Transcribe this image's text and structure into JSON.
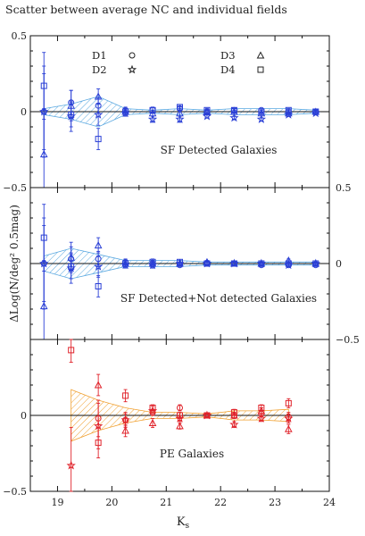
{
  "title": "Scatter between average NC and individual fields",
  "chart_data": [
    {
      "type": "scatter",
      "panel": "top",
      "annotation": "SF Detected Galaxies",
      "xlim": [
        18.5,
        24
      ],
      "ylim": [
        -0.5,
        0.5
      ],
      "yticks": [
        -0.5,
        0,
        0.5
      ],
      "ytick_labels": [
        "−0.5",
        "0",
        "0.5"
      ],
      "ytick_side": "left",
      "color": "#2a3fd6",
      "band_color": "#5aa8e0",
      "legend": {
        "items": [
          {
            "label": "D1",
            "symbol": "circle"
          },
          {
            "label": "D2",
            "symbol": "star"
          },
          {
            "label": "D3",
            "symbol": "triangle"
          },
          {
            "label": "D4",
            "symbol": "square"
          }
        ]
      },
      "band": {
        "x": [
          18.75,
          19.25,
          19.75,
          20.25,
          20.75,
          21.25,
          21.75,
          22.25,
          22.75,
          23.25,
          23.75
        ],
        "upper": [
          0.02,
          0.05,
          0.1,
          0.02,
          0.01,
          0.02,
          0.01,
          0.02,
          0.02,
          0.02,
          0.01
        ],
        "lower": [
          -0.02,
          -0.05,
          -0.1,
          -0.02,
          -0.01,
          -0.02,
          -0.01,
          -0.02,
          -0.02,
          -0.02,
          -0.01
        ]
      },
      "series": [
        {
          "marker": "circle",
          "points": [
            {
              "x": 18.75,
              "y": 0.0,
              "err": 0.3
            },
            {
              "x": 19.25,
              "y": 0.06,
              "err": 0.08
            },
            {
              "x": 19.75,
              "y": 0.04,
              "err": 0.05
            },
            {
              "x": 20.25,
              "y": 0.01,
              "err": 0.02
            },
            {
              "x": 20.75,
              "y": 0.01,
              "err": 0.02
            },
            {
              "x": 21.25,
              "y": 0.02,
              "err": 0.01
            },
            {
              "x": 21.75,
              "y": 0.0,
              "err": 0.01
            },
            {
              "x": 22.25,
              "y": 0.01,
              "err": 0.01
            },
            {
              "x": 22.75,
              "y": 0.01,
              "err": 0.01
            },
            {
              "x": 23.25,
              "y": 0.0,
              "err": 0.01
            },
            {
              "x": 23.75,
              "y": 0.0,
              "err": 0.01
            }
          ]
        },
        {
          "marker": "star",
          "points": [
            {
              "x": 18.75,
              "y": 0.0,
              "err": 0.25
            },
            {
              "x": 19.25,
              "y": -0.03,
              "err": 0.1
            },
            {
              "x": 19.75,
              "y": -0.02,
              "err": 0.07
            },
            {
              "x": 20.25,
              "y": -0.01,
              "err": 0.02
            },
            {
              "x": 20.75,
              "y": -0.05,
              "err": 0.02
            },
            {
              "x": 21.25,
              "y": -0.05,
              "err": 0.02
            },
            {
              "x": 21.75,
              "y": -0.03,
              "err": 0.01
            },
            {
              "x": 22.25,
              "y": -0.04,
              "err": 0.01
            },
            {
              "x": 22.75,
              "y": -0.05,
              "err": 0.01
            },
            {
              "x": 23.25,
              "y": -0.02,
              "err": 0.01
            },
            {
              "x": 23.75,
              "y": -0.01,
              "err": 0.01
            }
          ]
        },
        {
          "marker": "triangle",
          "points": [
            {
              "x": 18.75,
              "y": -0.28,
              "err": 0.3
            },
            {
              "x": 19.25,
              "y": 0.04,
              "err": 0.1
            },
            {
              "x": 19.75,
              "y": 0.1,
              "err": 0.05
            },
            {
              "x": 20.25,
              "y": 0.0,
              "err": 0.02
            },
            {
              "x": 20.75,
              "y": -0.01,
              "err": 0.02
            },
            {
              "x": 21.25,
              "y": -0.01,
              "err": 0.02
            },
            {
              "x": 21.75,
              "y": 0.0,
              "err": 0.01
            },
            {
              "x": 22.25,
              "y": 0.0,
              "err": 0.01
            },
            {
              "x": 22.75,
              "y": -0.01,
              "err": 0.01
            },
            {
              "x": 23.25,
              "y": -0.01,
              "err": 0.01
            },
            {
              "x": 23.75,
              "y": 0.0,
              "err": 0.01
            }
          ]
        },
        {
          "marker": "square",
          "points": [
            {
              "x": 18.75,
              "y": 0.17,
              "err": 0.22
            },
            {
              "x": 19.25,
              "y": -0.02,
              "err": 0.08
            },
            {
              "x": 19.75,
              "y": -0.18,
              "err": 0.07
            },
            {
              "x": 20.25,
              "y": 0.0,
              "err": 0.02
            },
            {
              "x": 20.75,
              "y": 0.01,
              "err": 0.02
            },
            {
              "x": 21.25,
              "y": 0.03,
              "err": 0.01
            },
            {
              "x": 21.75,
              "y": 0.01,
              "err": 0.01
            },
            {
              "x": 22.25,
              "y": 0.01,
              "err": 0.01
            },
            {
              "x": 22.75,
              "y": 0.0,
              "err": 0.01
            },
            {
              "x": 23.25,
              "y": 0.01,
              "err": 0.01
            },
            {
              "x": 23.75,
              "y": 0.0,
              "err": 0.01
            }
          ]
        }
      ]
    },
    {
      "type": "scatter",
      "panel": "middle",
      "annotation": "SF Detected+Not detected Galaxies",
      "xlim": [
        18.5,
        24
      ],
      "ylim": [
        -0.5,
        0.5
      ],
      "yticks": [
        -0.5,
        0,
        0.5
      ],
      "ytick_labels": [
        "−0.5",
        "0",
        "0.5"
      ],
      "ytick_side": "right",
      "color": "#2a3fd6",
      "band_color": "#5aa8e0",
      "band": {
        "x": [
          18.75,
          19.25,
          19.75,
          20.25,
          20.75,
          21.25,
          21.75,
          22.25,
          22.75,
          23.25,
          23.75
        ],
        "upper": [
          0.05,
          0.1,
          0.06,
          0.02,
          0.02,
          0.02,
          0.01,
          0.01,
          0.01,
          0.01,
          0.01
        ],
        "lower": [
          -0.05,
          -0.1,
          -0.06,
          -0.02,
          -0.02,
          -0.02,
          -0.01,
          -0.01,
          -0.01,
          -0.01,
          -0.01
        ]
      },
      "series": [
        {
          "marker": "circle",
          "points": [
            {
              "x": 18.75,
              "y": 0.0,
              "err": 0.3
            },
            {
              "x": 19.25,
              "y": 0.03,
              "err": 0.08
            },
            {
              "x": 19.75,
              "y": 0.03,
              "err": 0.05
            },
            {
              "x": 20.25,
              "y": 0.01,
              "err": 0.02
            },
            {
              "x": 20.75,
              "y": 0.0,
              "err": 0.02
            },
            {
              "x": 21.25,
              "y": -0.01,
              "err": 0.01
            },
            {
              "x": 21.75,
              "y": 0.0,
              "err": 0.01
            },
            {
              "x": 22.25,
              "y": 0.0,
              "err": 0.01
            },
            {
              "x": 22.75,
              "y": -0.01,
              "err": 0.01
            },
            {
              "x": 23.25,
              "y": -0.01,
              "err": 0.01
            },
            {
              "x": 23.75,
              "y": -0.01,
              "err": 0.01
            }
          ]
        },
        {
          "marker": "star",
          "points": [
            {
              "x": 18.75,
              "y": 0.0,
              "err": 0.25
            },
            {
              "x": 19.25,
              "y": -0.03,
              "err": 0.1
            },
            {
              "x": 19.75,
              "y": -0.02,
              "err": 0.07
            },
            {
              "x": 20.25,
              "y": -0.01,
              "err": 0.02
            },
            {
              "x": 20.75,
              "y": -0.01,
              "err": 0.02
            },
            {
              "x": 21.25,
              "y": 0.0,
              "err": 0.01
            },
            {
              "x": 21.75,
              "y": 0.0,
              "err": 0.01
            },
            {
              "x": 22.25,
              "y": 0.0,
              "err": 0.01
            },
            {
              "x": 22.75,
              "y": 0.0,
              "err": 0.01
            },
            {
              "x": 23.25,
              "y": -0.01,
              "err": 0.01
            },
            {
              "x": 23.75,
              "y": 0.0,
              "err": 0.01
            }
          ]
        },
        {
          "marker": "triangle",
          "points": [
            {
              "x": 18.75,
              "y": -0.28,
              "err": 0.3
            },
            {
              "x": 19.25,
              "y": 0.04,
              "err": 0.1
            },
            {
              "x": 19.75,
              "y": 0.12,
              "err": 0.05
            },
            {
              "x": 20.25,
              "y": 0.0,
              "err": 0.02
            },
            {
              "x": 20.75,
              "y": 0.0,
              "err": 0.02
            },
            {
              "x": 21.25,
              "y": 0.0,
              "err": 0.01
            },
            {
              "x": 21.75,
              "y": 0.01,
              "err": 0.01
            },
            {
              "x": 22.25,
              "y": 0.0,
              "err": 0.01
            },
            {
              "x": 22.75,
              "y": 0.0,
              "err": 0.01
            },
            {
              "x": 23.25,
              "y": 0.02,
              "err": 0.01
            },
            {
              "x": 23.75,
              "y": 0.0,
              "err": 0.01
            }
          ]
        },
        {
          "marker": "square",
          "points": [
            {
              "x": 18.75,
              "y": 0.17,
              "err": 0.22
            },
            {
              "x": 19.25,
              "y": -0.02,
              "err": 0.08
            },
            {
              "x": 19.75,
              "y": -0.15,
              "err": 0.07
            },
            {
              "x": 20.25,
              "y": 0.0,
              "err": 0.02
            },
            {
              "x": 20.75,
              "y": 0.01,
              "err": 0.02
            },
            {
              "x": 21.25,
              "y": 0.01,
              "err": 0.01
            },
            {
              "x": 21.75,
              "y": 0.0,
              "err": 0.01
            },
            {
              "x": 22.25,
              "y": 0.0,
              "err": 0.01
            },
            {
              "x": 22.75,
              "y": 0.0,
              "err": 0.01
            },
            {
              "x": 23.25,
              "y": 0.0,
              "err": 0.01
            },
            {
              "x": 23.75,
              "y": 0.0,
              "err": 0.01
            }
          ]
        }
      ]
    },
    {
      "type": "scatter",
      "panel": "bottom",
      "annotation": "PE Galaxies",
      "xlim": [
        18.5,
        24
      ],
      "ylim": [
        -0.5,
        0.5
      ],
      "yticks": [
        -0.5,
        0,
        0.5
      ],
      "ytick_labels": [
        "−0.5",
        "0",
        "0.5"
      ],
      "ytick_side": "left",
      "xticks": [
        19,
        20,
        21,
        22,
        23,
        24
      ],
      "color": "#e0222a",
      "band_color": "#f0a030",
      "band": {
        "x": [
          19.25,
          19.75,
          20.25,
          20.75,
          21.25,
          21.75,
          22.25,
          22.75,
          23.25
        ],
        "upper": [
          0.17,
          0.1,
          0.05,
          0.02,
          0.02,
          0.01,
          0.03,
          0.03,
          0.04
        ],
        "lower": [
          -0.17,
          -0.1,
          -0.05,
          -0.02,
          -0.02,
          -0.01,
          -0.03,
          -0.03,
          -0.04
        ]
      },
      "series": [
        {
          "marker": "circle",
          "points": [
            {
              "x": 19.75,
              "y": -0.02,
              "err": 0.12
            },
            {
              "x": 20.25,
              "y": -0.03,
              "err": 0.04
            },
            {
              "x": 20.75,
              "y": 0.02,
              "err": 0.02
            },
            {
              "x": 21.25,
              "y": 0.05,
              "err": 0.02
            },
            {
              "x": 21.75,
              "y": 0.0,
              "err": 0.01
            },
            {
              "x": 22.25,
              "y": 0.0,
              "err": 0.02
            },
            {
              "x": 22.75,
              "y": 0.01,
              "err": 0.02
            },
            {
              "x": 23.25,
              "y": -0.01,
              "err": 0.03
            }
          ]
        },
        {
          "marker": "star",
          "points": [
            {
              "x": 19.25,
              "y": -0.33,
              "err": 0.25
            },
            {
              "x": 19.75,
              "y": -0.07,
              "err": 0.15
            },
            {
              "x": 20.25,
              "y": -0.03,
              "err": 0.05
            },
            {
              "x": 20.75,
              "y": 0.03,
              "err": 0.03
            },
            {
              "x": 21.25,
              "y": -0.02,
              "err": 0.02
            },
            {
              "x": 21.75,
              "y": 0.0,
              "err": 0.01
            },
            {
              "x": 22.25,
              "y": -0.06,
              "err": 0.02
            },
            {
              "x": 22.75,
              "y": -0.02,
              "err": 0.02
            },
            {
              "x": 23.25,
              "y": -0.02,
              "err": 0.03
            }
          ]
        },
        {
          "marker": "triangle",
          "points": [
            {
              "x": 19.75,
              "y": 0.2,
              "err": 0.07
            },
            {
              "x": 20.25,
              "y": -0.1,
              "err": 0.04
            },
            {
              "x": 20.75,
              "y": -0.05,
              "err": 0.03
            },
            {
              "x": 21.25,
              "y": -0.07,
              "err": 0.02
            },
            {
              "x": 21.75,
              "y": 0.0,
              "err": 0.01
            },
            {
              "x": 22.25,
              "y": 0.0,
              "err": 0.02
            },
            {
              "x": 22.75,
              "y": 0.03,
              "err": 0.02
            },
            {
              "x": 23.25,
              "y": -0.09,
              "err": 0.03
            }
          ]
        },
        {
          "marker": "square",
          "points": [
            {
              "x": 19.25,
              "y": 0.43,
              "err": 0.08
            },
            {
              "x": 19.75,
              "y": -0.18,
              "err": 0.1
            },
            {
              "x": 20.25,
              "y": 0.13,
              "err": 0.04
            },
            {
              "x": 20.75,
              "y": 0.05,
              "err": 0.02
            },
            {
              "x": 21.25,
              "y": 0.0,
              "err": 0.02
            },
            {
              "x": 21.75,
              "y": 0.0,
              "err": 0.01
            },
            {
              "x": 22.25,
              "y": 0.02,
              "err": 0.02
            },
            {
              "x": 22.75,
              "y": 0.05,
              "err": 0.02
            },
            {
              "x": 23.25,
              "y": 0.08,
              "err": 0.03
            }
          ]
        }
      ]
    }
  ],
  "shared_axes": {
    "xlabel": "Ks",
    "ylabel": "ΔLog(N/deg² 0.5mag)"
  }
}
